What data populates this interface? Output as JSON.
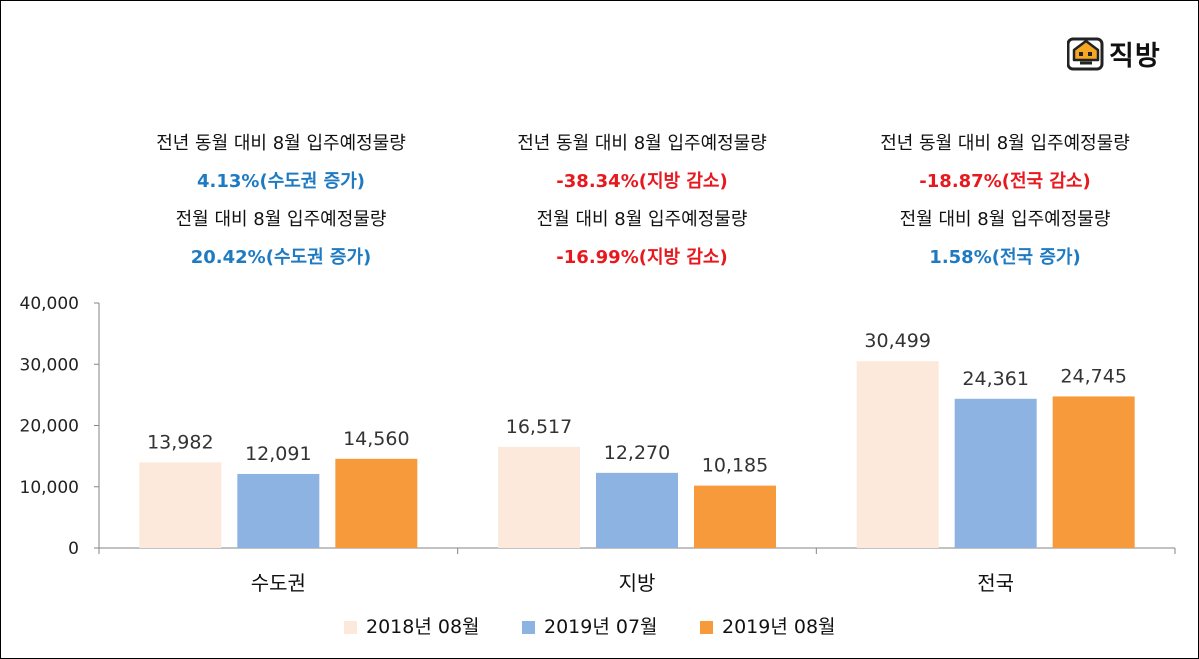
{
  "logo": {
    "text": "직방",
    "icon": "house-logo-icon",
    "color": "#F5A623"
  },
  "annotations": [
    {
      "line1": "전년 동월 대비 8월 입주예정물량",
      "value1": "4.13%(수도권 증가)",
      "color1": "#1F7BC1",
      "line2": "전월 대비 8월 입주예정물량",
      "value2": "20.42%(수도권 증가)",
      "color2": "#1F7BC1"
    },
    {
      "line1": "전년 동월 대비 8월 입주예정물량",
      "value1": "-38.34%(지방 감소)",
      "color1": "#E8191E",
      "line2": "전월 대비 8월 입주예정물량",
      "value2": "-16.99%(지방 감소)",
      "color2": "#E8191E"
    },
    {
      "line1": "전년 동월 대비 8월 입주예정물량",
      "value1": "-18.87%(전국 감소)",
      "color1": "#E8191E",
      "line2": "전월 대비 8월 입주예정물량",
      "value2": "1.58%(전국 증가)",
      "color2": "#1F7BC1"
    }
  ],
  "chart_data": {
    "type": "bar",
    "categories": [
      "수도권",
      "지방",
      "전국"
    ],
    "series": [
      {
        "name": "2018년 08월",
        "values": [
          13982,
          16517,
          30499
        ],
        "color": "#FDE9DB"
      },
      {
        "name": "2019년 07월",
        "values": [
          12091,
          12270,
          24361
        ],
        "color": "#8DB3E2"
      },
      {
        "name": "2019년 08월",
        "values": [
          14560,
          10185,
          24745
        ],
        "color": "#F79A3B"
      }
    ],
    "data_labels": [
      [
        "13,982",
        "16,517",
        "30,499"
      ],
      [
        "12,091",
        "12,270",
        "24,361"
      ],
      [
        "14,560",
        "10,185",
        "24,745"
      ]
    ],
    "ylim": [
      0,
      40000
    ],
    "yticks": [
      0,
      10000,
      20000,
      30000,
      40000
    ],
    "ytick_labels": [
      "0",
      "10,000",
      "20,000",
      "30,000",
      "40,000"
    ],
    "title": "",
    "xlabel": "",
    "ylabel": "",
    "grid": false,
    "legend_position": "bottom"
  }
}
